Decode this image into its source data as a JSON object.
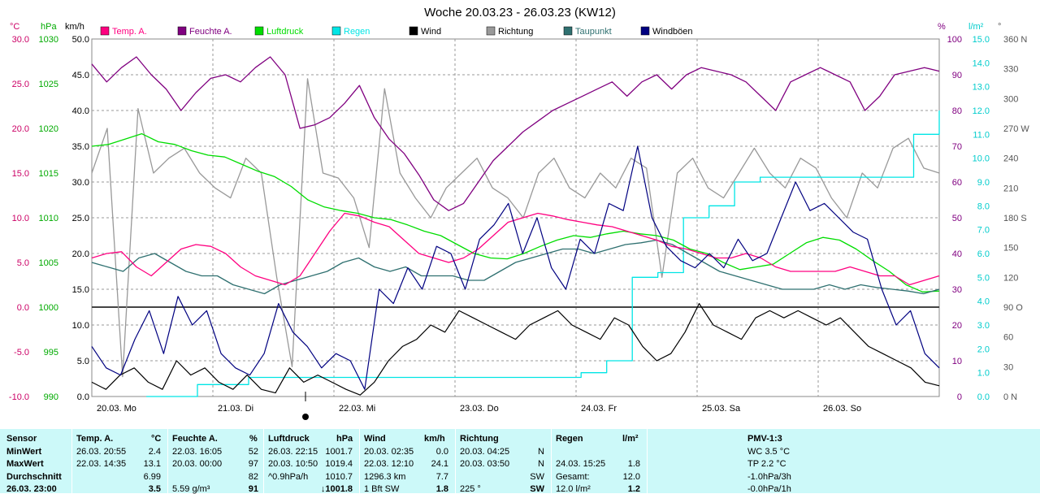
{
  "chart_data": {
    "type": "line",
    "title": "Woche 20.03.23 - 26.03.23 (KW12)",
    "x_ticks": [
      "20.03. Mo",
      "21.03. Di",
      "22.03. Mi",
      "23.03. Do",
      "24.03. Fr",
      "25.03. Sa",
      "26.03. So"
    ],
    "grid": true,
    "axes": {
      "temp": {
        "unit": "°C",
        "min": -10,
        "max": 30,
        "ticks": [
          "30.0",
          "25.0",
          "20.0",
          "15.0",
          "10.0",
          "5.0",
          "0.0",
          "-5.0",
          "-10.0"
        ],
        "color": "#cc0066"
      },
      "press": {
        "unit": "hPa",
        "min": 990,
        "max": 1030,
        "ticks": [
          "1030",
          "1025",
          "1020",
          "1015",
          "1010",
          "1005",
          "1000",
          "995",
          "990"
        ],
        "color": "#00aa00"
      },
      "wind": {
        "unit": "km/h",
        "min": 0,
        "max": 50,
        "ticks": [
          "50.0",
          "45.0",
          "40.0",
          "35.0",
          "30.0",
          "25.0",
          "20.0",
          "15.0",
          "10.0",
          "5.0",
          "0.0"
        ],
        "color": "#000000"
      },
      "hum": {
        "unit": "%",
        "min": 0,
        "max": 100,
        "ticks": [
          "100",
          "90",
          "80",
          "70",
          "60",
          "50",
          "40",
          "30",
          "20",
          "10",
          "0"
        ],
        "color": "#800080"
      },
      "rain": {
        "unit": "l/m²",
        "min": 0,
        "max": 15,
        "ticks": [
          "15.0",
          "14.0",
          "13.0",
          "12.0",
          "11.0",
          "10.0",
          "9.0",
          "8.0",
          "7.0",
          "6.0",
          "5.0",
          "4.0",
          "3.0",
          "2.0",
          "1.0",
          "0.0"
        ],
        "color": "#00cccc"
      },
      "dir": {
        "unit": "°",
        "min": 0,
        "max": 360,
        "ticks": [
          "360 N",
          "330",
          "300",
          "270 W",
          "240",
          "210",
          "180 S",
          "150",
          "120",
          "90 O",
          "60",
          "30",
          "0 N"
        ],
        "color": "#555555"
      }
    },
    "legend": [
      {
        "name": "Temp. A.",
        "color": "#ff0080"
      },
      {
        "name": "Feuchte A.",
        "color": "#800080"
      },
      {
        "name": "Luftdruck",
        "color": "#00dd00"
      },
      {
        "name": "Regen",
        "color": "#00e5e5"
      },
      {
        "name": "Wind",
        "color": "#000000"
      },
      {
        "name": "Richtung",
        "color": "#999999"
      },
      {
        "name": "Taupunkt",
        "color": "#2f7070"
      },
      {
        "name": "Windböen",
        "color": "#000080"
      }
    ],
    "series": [
      {
        "name": "Temp. A.",
        "axis": "temp",
        "color": "#ff0080",
        "values": [
          5.5,
          6.0,
          6.2,
          4.5,
          3.5,
          5.0,
          6.5,
          7.0,
          6.8,
          6.0,
          4.5,
          3.5,
          3.0,
          2.5,
          3.5,
          6.0,
          8.5,
          10.5,
          10.2,
          9.5,
          9.0,
          7.5,
          6.0,
          5.5,
          5.0,
          5.5,
          6.5,
          8.0,
          9.5,
          10.0,
          10.5,
          10.2,
          9.8,
          9.5,
          9.2,
          9.0,
          8.5,
          8.0,
          7.5,
          6.8,
          6.5,
          6.0,
          5.5,
          5.5,
          6.0,
          5.5,
          4.5,
          4.0,
          4.0,
          4.0,
          4.0,
          4.5,
          4.0,
          3.5,
          3.5,
          2.5,
          3.0,
          3.5
        ]
      },
      {
        "name": "Feuchte A.",
        "axis": "hum",
        "color": "#800080",
        "values": [
          93,
          88,
          92,
          95,
          90,
          86,
          80,
          85,
          89,
          90,
          88,
          92,
          95,
          90,
          75,
          76,
          78,
          82,
          87,
          78,
          72,
          68,
          62,
          55,
          52,
          54,
          60,
          66,
          70,
          74,
          77,
          80,
          82,
          84,
          86,
          88,
          84,
          88,
          90,
          86,
          90,
          92,
          91,
          90,
          88,
          84,
          80,
          88,
          90,
          92,
          90,
          88,
          80,
          84,
          90,
          91,
          92,
          91
        ]
      },
      {
        "name": "Luftdruck",
        "axis": "press",
        "color": "#00dd00",
        "values": [
          1018.0,
          1018.2,
          1018.8,
          1019.4,
          1018.5,
          1018.2,
          1017.5,
          1017.0,
          1016.8,
          1016.0,
          1015.2,
          1014.6,
          1013.5,
          1012.0,
          1011.2,
          1010.8,
          1010.5,
          1010.0,
          1009.8,
          1009.2,
          1008.5,
          1008.0,
          1007.0,
          1006.0,
          1005.5,
          1005.4,
          1006.0,
          1006.8,
          1007.5,
          1008.0,
          1007.8,
          1008.2,
          1008.5,
          1008.2,
          1008.0,
          1007.5,
          1006.5,
          1006.0,
          1005.0,
          1004.2,
          1004.5,
          1004.8,
          1006.0,
          1007.2,
          1007.8,
          1007.5,
          1006.5,
          1005.2,
          1004.0,
          1002.5,
          1001.7,
          1001.8
        ]
      },
      {
        "name": "Wind",
        "axis": "wind",
        "color": "#000000",
        "values": [
          2,
          1,
          3,
          4,
          2,
          1,
          5,
          3,
          4,
          2,
          1,
          3,
          1,
          0.5,
          4,
          2,
          3,
          2,
          1,
          0.2,
          2,
          5,
          7,
          8,
          10,
          9,
          12,
          11,
          10,
          9,
          8,
          10,
          11,
          12,
          10,
          9,
          8,
          11,
          10,
          7,
          5,
          6,
          9,
          13,
          10,
          9,
          8,
          11,
          12,
          11,
          12,
          11,
          10,
          11,
          9,
          7,
          6,
          5,
          4,
          2,
          1.5
        ]
      },
      {
        "name": "Richtung",
        "axis": "dir",
        "color": "#999999",
        "values": [
          225,
          270,
          20,
          290,
          225,
          240,
          250,
          225,
          210,
          200,
          240,
          225,
          120,
          30,
          320,
          225,
          220,
          200,
          150,
          310,
          225,
          200,
          180,
          210,
          225,
          240,
          210,
          200,
          180,
          225,
          240,
          210,
          200,
          225,
          210,
          240,
          230,
          120,
          225,
          240,
          210,
          200,
          225,
          250,
          225,
          210,
          240,
          230,
          200,
          180,
          225,
          210,
          250,
          260,
          230,
          225
        ]
      },
      {
        "name": "Taupunkt",
        "axis": "temp",
        "color": "#2f7070",
        "values": [
          5.0,
          4.5,
          4.0,
          5.5,
          6.0,
          5.0,
          4.0,
          3.5,
          3.5,
          2.5,
          2.0,
          1.5,
          2.5,
          3.0,
          3.5,
          4.0,
          5.0,
          5.5,
          4.5,
          4.0,
          4.5,
          3.5,
          3.5,
          3.5,
          3.0,
          3.0,
          4.0,
          5.0,
          5.5,
          6.0,
          6.5,
          6.5,
          6.0,
          6.5,
          7.0,
          7.2,
          7.5,
          7.0,
          6.0,
          5.0,
          4.0,
          3.5,
          3.0,
          2.5,
          2.0,
          2.0,
          2.0,
          2.5,
          2.0,
          2.5,
          2.2,
          2.0,
          1.8,
          1.5,
          2.0
        ]
      },
      {
        "name": "Windböen",
        "axis": "wind",
        "color": "#000080",
        "values": [
          7,
          4,
          3,
          8,
          12,
          6,
          14,
          10,
          12,
          6,
          4,
          3,
          6,
          13,
          9,
          7,
          4,
          6,
          5,
          1,
          15,
          13,
          18,
          15,
          21,
          20,
          15,
          22,
          24,
          27,
          20,
          25,
          18,
          15,
          22,
          20,
          27,
          26,
          35,
          25,
          21,
          19,
          18,
          20,
          18,
          22,
          19,
          20,
          25,
          30,
          26,
          27,
          25,
          23,
          22,
          15,
          10,
          12,
          6,
          4
        ]
      },
      {
        "name": "Regen",
        "axis": "rain",
        "color": "#00e5e5",
        "values": [
          0,
          0,
          0.5,
          0.5,
          0.8,
          0.8,
          0.8,
          0.8,
          0.8,
          0.8,
          0.8,
          0.8,
          0.8,
          0.8,
          0.8,
          0.8,
          0.8,
          1.0,
          1.5,
          5.0,
          5.2,
          7.5,
          8.0,
          9.0,
          9.2,
          9.2,
          9.2,
          9.2,
          9.2,
          9.2,
          11.0,
          12.0
        ]
      }
    ]
  },
  "stats": {
    "headers": [
      "Sensor",
      "Temp. A.",
      "°C",
      "Feuchte A.",
      "%",
      "Luftdruck",
      "hPa",
      "Wind",
      "km/h",
      "Richtung",
      "Regen",
      "l/m²",
      "PMV-1:3"
    ],
    "row_labels": [
      "MinWert",
      "MaxWert",
      "Durchschnitt",
      "26.03. 23:00"
    ],
    "temp": [
      [
        "26.03.  20:55",
        "2.4"
      ],
      [
        "22.03.  14:35",
        "13.1"
      ],
      [
        "",
        "6.99"
      ],
      [
        "",
        "3.5"
      ]
    ],
    "hum": [
      [
        "22.03.  16:05",
        "52"
      ],
      [
        "20.03.  00:00",
        "97"
      ],
      [
        "",
        "82"
      ],
      [
        "5.59 g/m³",
        "91"
      ]
    ],
    "press": [
      [
        "26.03.  22:15",
        "1001.7"
      ],
      [
        "20.03.  10:50",
        "1019.4"
      ],
      [
        "^0.9hPa/h",
        "1010.7"
      ],
      [
        "",
        "↓1001.8"
      ]
    ],
    "wind": [
      [
        "20.03.  02:35",
        "0.0"
      ],
      [
        "22.03.  12:10",
        "24.1"
      ],
      [
        "1296.3 km",
        "7.7"
      ],
      [
        "1 Bft SW",
        "1.8"
      ]
    ],
    "dir": [
      [
        "20.03.  04:25",
        "N"
      ],
      [
        "20.03.  03:50",
        "N"
      ],
      [
        "",
        "SW"
      ],
      [
        "225 °",
        "SW"
      ]
    ],
    "rain": [
      [
        "",
        ""
      ],
      [
        "24.03.  15:25",
        "1.8"
      ],
      [
        "Gesamt:",
        "12.0"
      ],
      [
        "12.0 l/m²",
        "1.2"
      ]
    ],
    "pmv": [
      "WC 3.5 °C",
      "TP 2.2 °C",
      "-1.0hPa/3h",
      "-0.0hPa/1h"
    ]
  }
}
